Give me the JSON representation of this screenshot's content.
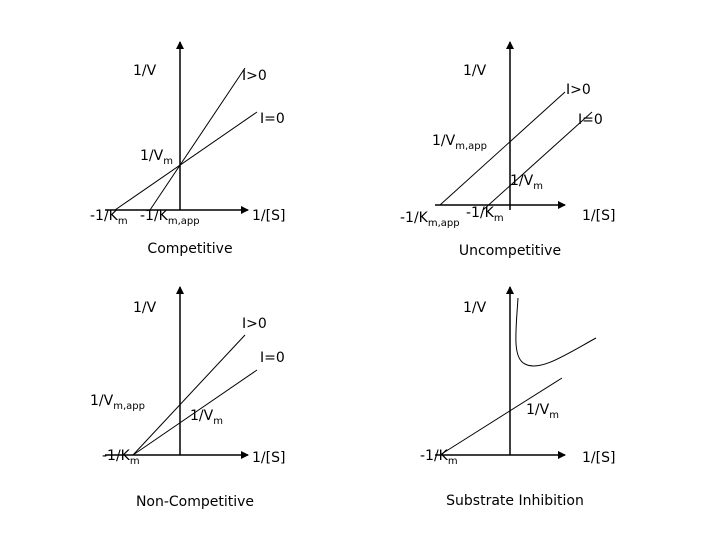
{
  "panels": [
    {
      "title": "Competitive",
      "y_axis": "1/V",
      "x_axis": "1/[S]",
      "labels": [
        {
          "text": "I>0"
        },
        {
          "text": "I=0"
        },
        {
          "text": "1/V",
          "sub": "m"
        },
        {
          "text": "-1/K",
          "sub": "m"
        },
        {
          "text": "-1/K",
          "sub": "m,app"
        }
      ]
    },
    {
      "title": "Uncompetitive",
      "y_axis": "1/V",
      "x_axis": "1/[S]",
      "labels": [
        {
          "text": "I>0"
        },
        {
          "text": "I=0"
        },
        {
          "text": "1/V",
          "sub": "m,app"
        },
        {
          "text": "1/V",
          "sub": "m"
        },
        {
          "text": "-1/K",
          "sub": "m,app"
        },
        {
          "text": "-1/K",
          "sub": "m"
        }
      ]
    },
    {
      "title": "Non-Competitive",
      "y_axis": "1/V",
      "x_axis": "1/[S]",
      "labels": [
        {
          "text": "I>0"
        },
        {
          "text": "I=0"
        },
        {
          "text": "1/V",
          "sub": "m,app"
        },
        {
          "text": "1/V",
          "sub": "m"
        },
        {
          "text": "-1/K",
          "sub": "m"
        }
      ]
    },
    {
      "title": "Substrate Inhibition",
      "y_axis": "1/V",
      "x_axis": "1/[S]",
      "labels": [
        {
          "text": "1/V",
          "sub": "m"
        },
        {
          "text": "-1/K",
          "sub": "m"
        }
      ]
    }
  ]
}
